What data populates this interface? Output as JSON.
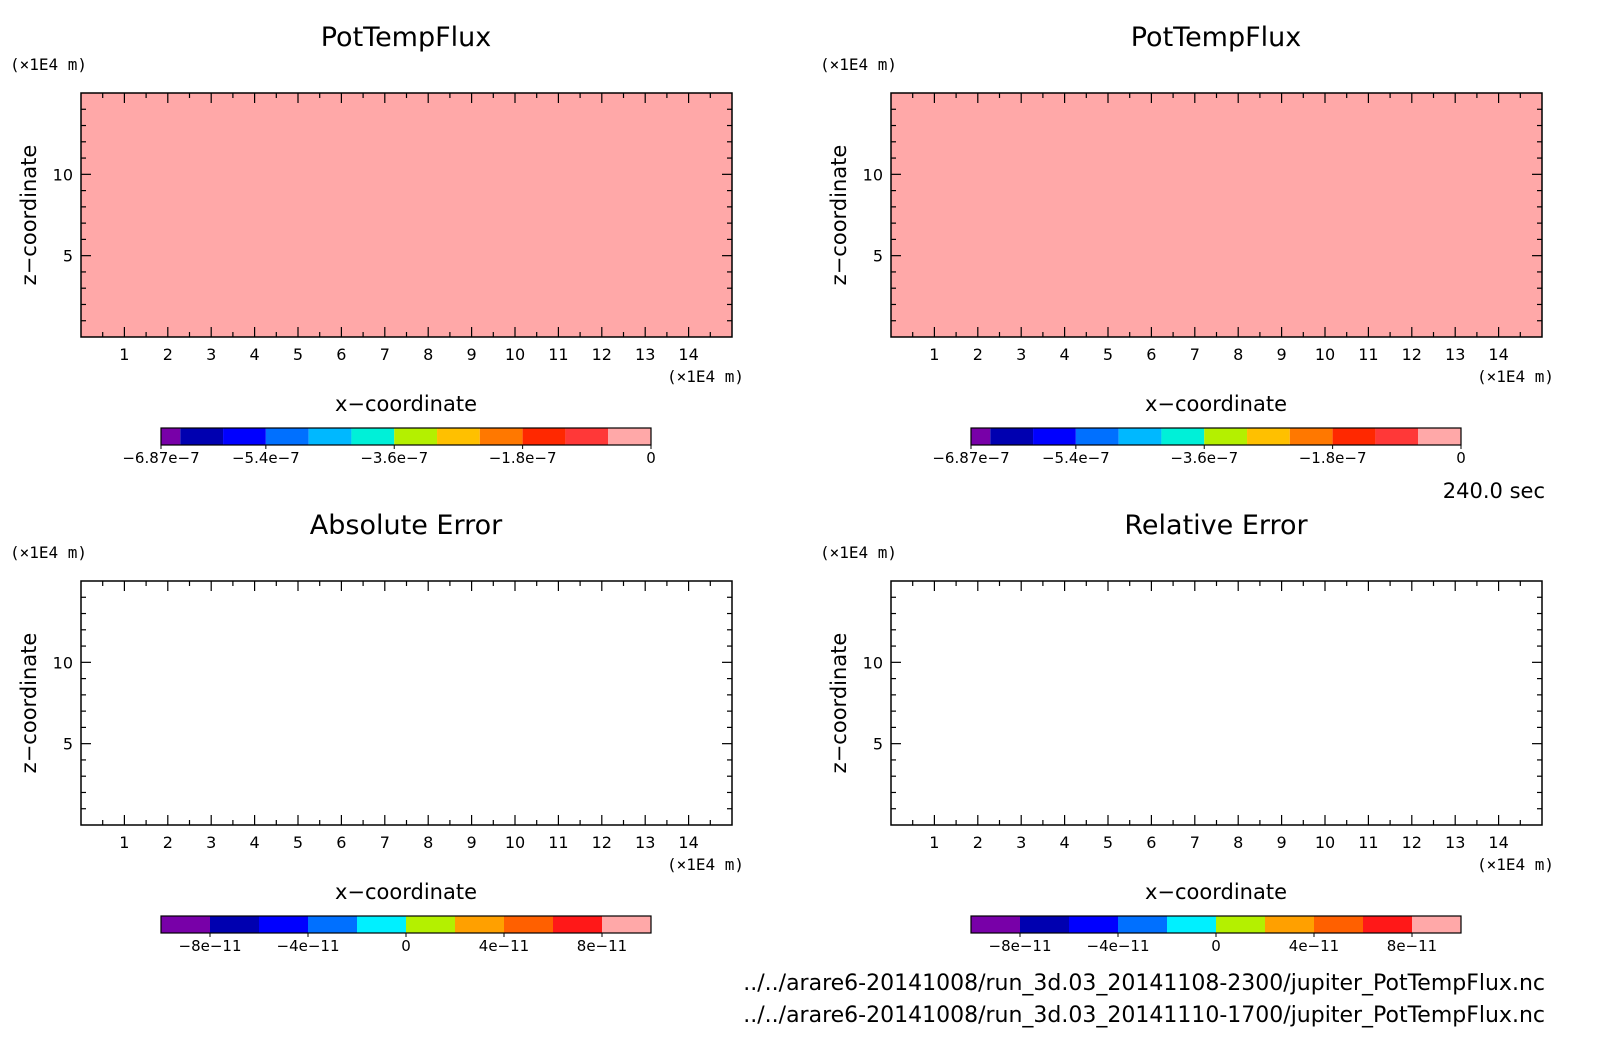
{
  "figure": {
    "time_label": "240.0 sec",
    "files": [
      "../../arare6-20141008/run_3d.03_20141108-2300/jupiter_PotTempFlux.nc",
      "../../arare6-20141008/run_3d.03_20141110-1700/jupiter_PotTempFlux.nc"
    ]
  },
  "chart_data": [
    {
      "type": "heatmap",
      "title": "PotTempFlux",
      "xlabel": "x−coordinate",
      "ylabel": "z−coordinate",
      "x_unit": "(×1E4 m)",
      "y_unit": "(×1E4 m)",
      "xlim": [
        0,
        15
      ],
      "ylim": [
        0,
        15
      ],
      "xticks": [
        1,
        2,
        3,
        4,
        5,
        6,
        7,
        8,
        9,
        10,
        11,
        12,
        13,
        14
      ],
      "yticks": [
        5,
        10
      ],
      "fill_color": "#ffa8a8",
      "colorbar": {
        "range": [
          -6.87e-07,
          0
        ],
        "colors": [
          "#7800a8",
          "#0000b0",
          "#0000ff",
          "#0070ff",
          "#00b8ff",
          "#00f0d8",
          "#b4f000",
          "#ffc000",
          "#ff7800",
          "#ff2800",
          "#ff3838",
          "#ffa8a8"
        ],
        "labels": [
          "−6.87e−7",
          "−5.4e−7",
          "−3.6e−7",
          "−1.8e−7",
          "0"
        ],
        "label_values": [
          -6.87e-07,
          -5.4e-07,
          -3.6e-07,
          -1.8e-07,
          0
        ]
      }
    },
    {
      "type": "heatmap",
      "title": "PotTempFlux",
      "xlabel": "x−coordinate",
      "ylabel": "z−coordinate",
      "x_unit": "(×1E4 m)",
      "y_unit": "(×1E4 m)",
      "xlim": [
        0,
        15
      ],
      "ylim": [
        0,
        15
      ],
      "xticks": [
        1,
        2,
        3,
        4,
        5,
        6,
        7,
        8,
        9,
        10,
        11,
        12,
        13,
        14
      ],
      "yticks": [
        5,
        10
      ],
      "fill_color": "#ffa8a8",
      "colorbar": {
        "range": [
          -6.87e-07,
          0
        ],
        "colors": [
          "#7800a8",
          "#0000b0",
          "#0000ff",
          "#0070ff",
          "#00b8ff",
          "#00f0d8",
          "#b4f000",
          "#ffc000",
          "#ff7800",
          "#ff2800",
          "#ff3838",
          "#ffa8a8"
        ],
        "labels": [
          "−6.87e−7",
          "−5.4e−7",
          "−3.6e−7",
          "−1.8e−7",
          "0"
        ],
        "label_values": [
          -6.87e-07,
          -5.4e-07,
          -3.6e-07,
          -1.8e-07,
          0
        ]
      }
    },
    {
      "type": "heatmap",
      "title": "Absolute Error",
      "xlabel": "x−coordinate",
      "ylabel": "z−coordinate",
      "x_unit": "(×1E4 m)",
      "y_unit": "(×1E4 m)",
      "xlim": [
        0,
        15
      ],
      "ylim": [
        0,
        15
      ],
      "xticks": [
        1,
        2,
        3,
        4,
        5,
        6,
        7,
        8,
        9,
        10,
        11,
        12,
        13,
        14
      ],
      "yticks": [
        5,
        10
      ],
      "fill_color": "#ffffff",
      "colorbar": {
        "range": [
          -1e-10,
          1e-10
        ],
        "colors": [
          "#7800a8",
          "#0000b0",
          "#0000ff",
          "#0070ff",
          "#00f0ff",
          "#b4f000",
          "#ffa000",
          "#ff6000",
          "#ff1818",
          "#ffa8a8"
        ],
        "labels": [
          "−8e−11",
          "−4e−11",
          "0",
          "4e−11",
          "8e−11"
        ],
        "label_values": [
          -8e-11,
          -4e-11,
          0,
          4e-11,
          8e-11
        ]
      }
    },
    {
      "type": "heatmap",
      "title": "Relative Error",
      "xlabel": "x−coordinate",
      "ylabel": "z−coordinate",
      "x_unit": "(×1E4 m)",
      "y_unit": "(×1E4 m)",
      "xlim": [
        0,
        15
      ],
      "ylim": [
        0,
        15
      ],
      "xticks": [
        1,
        2,
        3,
        4,
        5,
        6,
        7,
        8,
        9,
        10,
        11,
        12,
        13,
        14
      ],
      "yticks": [
        5,
        10
      ],
      "fill_color": "#ffffff",
      "colorbar": {
        "range": [
          -1e-10,
          1e-10
        ],
        "colors": [
          "#7800a8",
          "#0000b0",
          "#0000ff",
          "#0070ff",
          "#00f0ff",
          "#b4f000",
          "#ffa000",
          "#ff6000",
          "#ff1818",
          "#ffa8a8"
        ],
        "labels": [
          "−8e−11",
          "−4e−11",
          "0",
          "4e−11",
          "8e−11"
        ],
        "label_values": [
          -8e-11,
          -4e-11,
          0,
          4e-11,
          8e-11
        ]
      }
    }
  ]
}
